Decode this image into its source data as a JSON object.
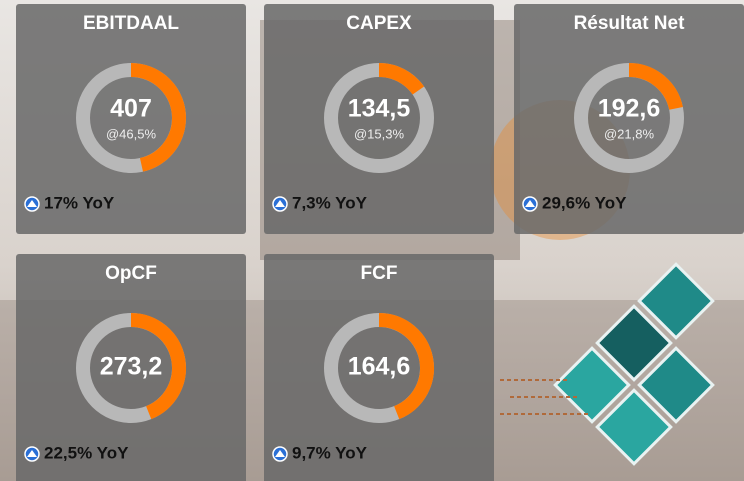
{
  "cards": [
    {
      "title": "EBITDAAL",
      "value": "407",
      "share": 46.5,
      "share_label": "@46,5%",
      "yoy": "17% YoY"
    },
    {
      "title": "CAPEX",
      "value": "134,5",
      "share": 15.3,
      "share_label": "@15,3%",
      "yoy": "7,3% YoY"
    },
    {
      "title": "Résultat Net",
      "value": "192,6",
      "share": 21.8,
      "share_label": "@21,8%",
      "yoy": "29,6% YoY"
    },
    {
      "title": "OpCF",
      "value": "273,2",
      "share": 44,
      "yoy": "22,5% YoY"
    },
    {
      "title": "FCF",
      "value": "164,6",
      "share": 44,
      "yoy": "9,7% YoY"
    }
  ]
}
